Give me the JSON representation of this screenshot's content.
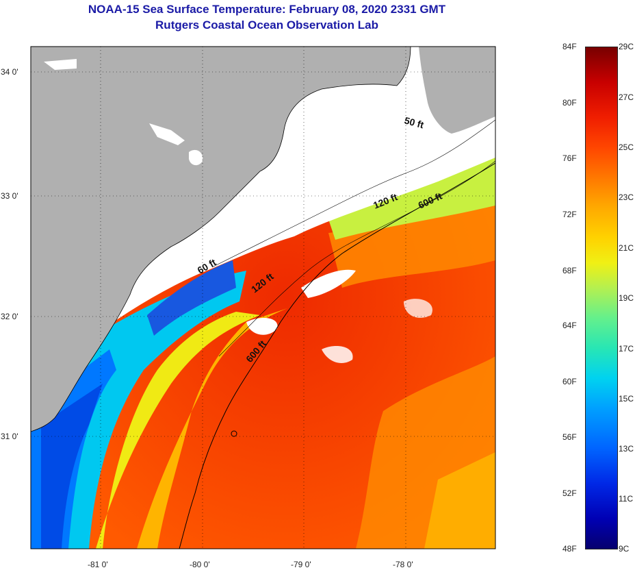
{
  "title": "NOAA-15 Sea Surface Temperature:  February 08, 2020 2331 GMT",
  "subtitle": "Rutgers Coastal Ocean Observation Lab",
  "lon_labels": [
    "-81 0'",
    "-80 0'",
    "-79 0'",
    "-78 0'"
  ],
  "lat_labels": [
    "34 0'",
    "33 0'",
    "32 0'",
    "31 0'"
  ],
  "depth_labels": [
    "50 ft",
    "60 ft",
    "120 ft",
    "120 ft",
    "600 ft",
    "600 ft"
  ],
  "colorbar": {
    "f_labels": [
      "84F",
      "80F",
      "76F",
      "72F",
      "68F",
      "64F",
      "60F",
      "56F",
      "52F",
      "48F"
    ],
    "c_labels": [
      "29C",
      "27C",
      "25C",
      "23C",
      "21C",
      "19C",
      "17C",
      "15C",
      "13C",
      "11C",
      "9C"
    ],
    "low_color": "#06006e",
    "high_color": "#780000"
  },
  "colors": {
    "title": "#1a1aa6",
    "land": "#b0b0b0",
    "cloud": "#ffffff"
  }
}
